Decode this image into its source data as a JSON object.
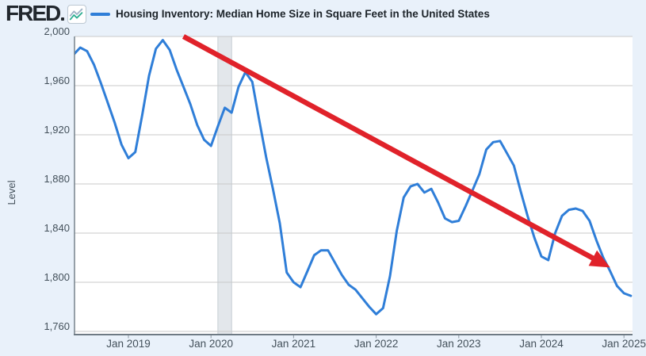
{
  "header": {
    "logo_text": "FRED",
    "graph_icon": "fred-mini-graph-icon"
  },
  "colors": {
    "background": "#e9f1fa",
    "plot_background": "#ffffff",
    "gridline": "#c9c9c9",
    "axis_line": "#6e7a84",
    "tick_label": "#43505a",
    "title_text": "#1d242a",
    "series_line": "#2f7ed8",
    "trend_arrow": "#e0222a",
    "recession_band": "#e3e7eb"
  },
  "chart_data": {
    "type": "line",
    "title": "Housing Inventory: Median Home Size in Square Feet in the United States",
    "xlabel": "",
    "ylabel": "Level",
    "ylim": [
      1760,
      2000
    ],
    "grid": "horizontal",
    "legend_position": "top",
    "y_ticks": [
      {
        "value": 2000,
        "label": "2,000"
      },
      {
        "value": 1960,
        "label": "1,960"
      },
      {
        "value": 1920,
        "label": "1,920"
      },
      {
        "value": 1880,
        "label": "1,880"
      },
      {
        "value": 1840,
        "label": "1,840"
      },
      {
        "value": 1800,
        "label": "1,800"
      },
      {
        "value": 1760,
        "label": "1,760"
      }
    ],
    "x_ticks": [
      {
        "month": "2019-01",
        "label": "Jan 2019"
      },
      {
        "month": "2020-01",
        "label": "Jan 2020"
      },
      {
        "month": "2021-01",
        "label": "Jan 2021"
      },
      {
        "month": "2022-01",
        "label": "Jan 2022"
      },
      {
        "month": "2023-01",
        "label": "Jan 2023"
      },
      {
        "month": "2024-01",
        "label": "Jan 2024"
      },
      {
        "month": "2025-01",
        "label": "Jan 2025"
      }
    ],
    "series": [
      {
        "name": "Housing Inventory: Median Home Size in Square Feet in the United States",
        "color": "#2f7ed8",
        "frequency": "monthly",
        "start": "2018-05",
        "values": [
          1985,
          1991,
          1988,
          1977,
          1962,
          1946,
          1930,
          1912,
          1901,
          1906,
          1936,
          1968,
          1990,
          1997,
          1989,
          1973,
          1959,
          1945,
          1928,
          1916,
          1911,
          1927,
          1942,
          1938,
          1959,
          1971,
          1963,
          1932,
          1902,
          1876,
          1848,
          1808,
          1800,
          1796,
          1809,
          1822,
          1826,
          1826,
          1816,
          1806,
          1798,
          1794,
          1787,
          1780,
          1774,
          1779,
          1805,
          1842,
          1869,
          1878,
          1880,
          1873,
          1876,
          1865,
          1852,
          1849,
          1850,
          1862,
          1875,
          1888,
          1908,
          1914,
          1915,
          1905,
          1895,
          1874,
          1854,
          1836,
          1821,
          1818,
          1840,
          1854,
          1859,
          1860,
          1858,
          1850,
          1834,
          1820,
          1809,
          1797,
          1791,
          1789
        ]
      }
    ],
    "recession_band": {
      "start": "2020-02",
      "end": "2020-04",
      "color": "#e3e7eb"
    },
    "annotation_arrow": {
      "start": {
        "month": "2019-09",
        "value": 2000
      },
      "end": {
        "month": "2024-11",
        "value": 1812
      },
      "color": "#e0222a"
    }
  }
}
